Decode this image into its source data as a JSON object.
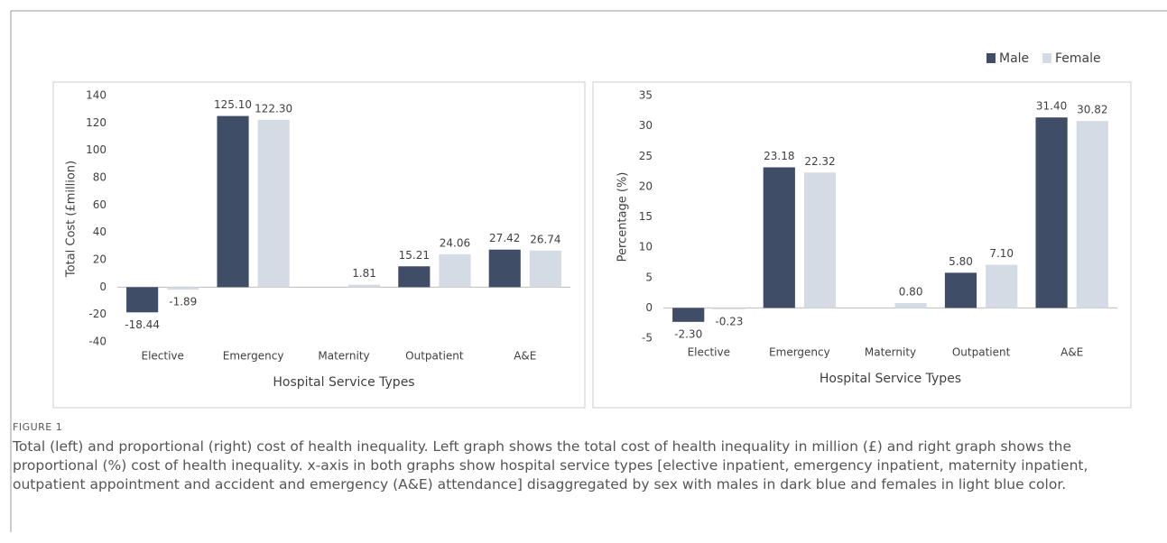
{
  "chart_data": [
    {
      "type": "bar",
      "x_label": "Hospital Service Types",
      "y_label": "Total Cost (£million)",
      "categories": [
        "Elective",
        "Emergency",
        "Maternity",
        "Outpatient",
        "A&E"
      ],
      "series": [
        {
          "name": "Male",
          "color": "#3f4e66",
          "values": [
            -18.44,
            125.1,
            null,
            15.21,
            27.42
          ],
          "value_labels": [
            "-18.44",
            "125.10",
            null,
            "15.21",
            "27.42"
          ]
        },
        {
          "name": "Female",
          "color": "#d5dbe5",
          "values": [
            -1.89,
            122.3,
            1.81,
            24.06,
            26.74
          ],
          "value_labels": [
            "-1.89",
            "122.30",
            "1.81",
            "24.06",
            "26.74"
          ]
        }
      ],
      "ylim": [
        -40,
        140
      ],
      "yticks": [
        -40,
        -20,
        0,
        20,
        40,
        60,
        80,
        100,
        120,
        140
      ]
    },
    {
      "type": "bar",
      "x_label": "Hospital Service Types",
      "y_label": "Percentage (%)",
      "categories": [
        "Elective",
        "Emergency",
        "Maternity",
        "Outpatient",
        "A&E"
      ],
      "series": [
        {
          "name": "Male",
          "color": "#3f4e66",
          "values": [
            -2.3,
            23.18,
            null,
            5.8,
            31.4
          ],
          "value_labels": [
            "-2.30",
            "23.18",
            null,
            "5.80",
            "31.40"
          ]
        },
        {
          "name": "Female",
          "color": "#d5dbe5",
          "values": [
            -0.23,
            22.32,
            0.8,
            7.1,
            30.82
          ],
          "value_labels": [
            "-0.23",
            "22.32",
            "0.80",
            "7.10",
            "30.82"
          ]
        }
      ],
      "ylim": [
        -5,
        35
      ],
      "yticks": [
        -5,
        0,
        5,
        10,
        15,
        20,
        25,
        30,
        35
      ]
    }
  ],
  "caption": {
    "label": "FIGURE 1",
    "text": "Total (left) and proportional (right) cost of health inequality. Left graph shows the total cost of health inequality in million (£) and right graph shows the proportional (%) cost of health inequality. x-axis in both graphs show hospital service types [elective inpatient, emergency inpatient, maternity inpatient, outpatient appointment and accident and emergency (A&E) attendance] disaggregated by sex with males in dark blue and females in light blue color."
  }
}
